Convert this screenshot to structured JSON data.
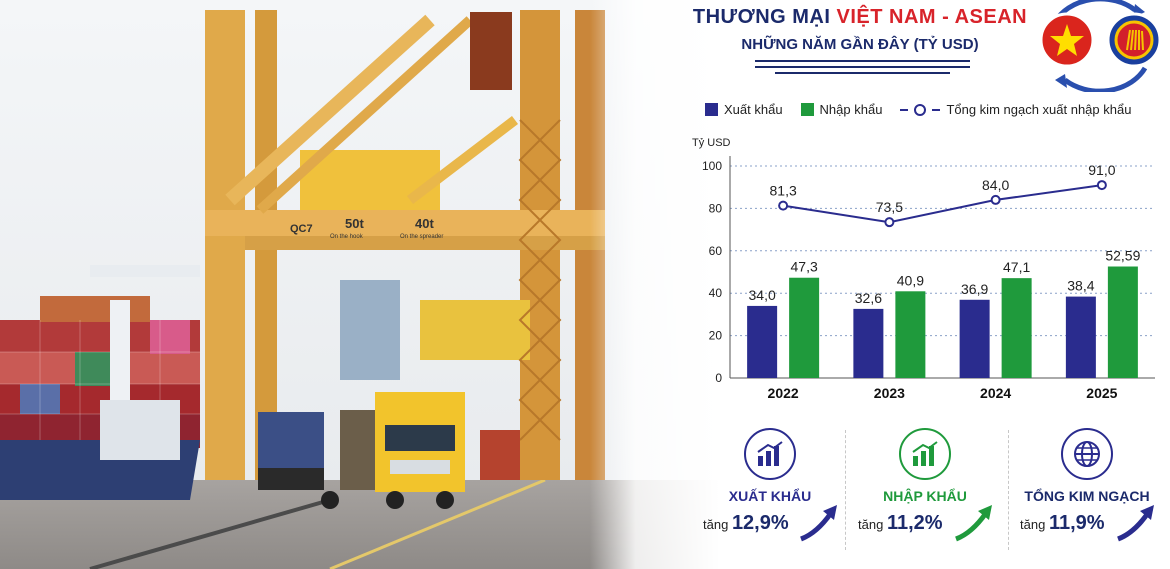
{
  "title": {
    "line1_prefix": "THƯƠNG MẠI ",
    "line1_highlight": "VIỆT NAM - ASEAN",
    "line2": "NHỮNG NĂM GẦN ĐÂY (TỶ USD)"
  },
  "colors": {
    "export": "#2a2c8e",
    "import": "#1f9a3c",
    "total": "#2a2c8e",
    "title": "#1b2a6b",
    "highlight": "#d8232a"
  },
  "chart_data": {
    "type": "bar",
    "categories": [
      "2022",
      "2023",
      "2024",
      "2025"
    ],
    "series": [
      {
        "name": "Xuất khẩu",
        "type": "bar",
        "values": [
          34.0,
          32.6,
          36.9,
          38.4
        ],
        "labels": [
          "34,0",
          "32,6",
          "36,9",
          "38,4"
        ]
      },
      {
        "name": "Nhập khẩu",
        "type": "bar",
        "values": [
          47.3,
          40.9,
          47.1,
          52.59
        ],
        "labels": [
          "47,3",
          "40,9",
          "47,1",
          "52,59"
        ]
      },
      {
        "name": "Tổng kim ngạch xuất nhập khẩu",
        "type": "line",
        "values": [
          81.3,
          73.5,
          84.0,
          91.0
        ],
        "labels": [
          "81,3",
          "73,5",
          "84,0",
          "91,0"
        ]
      }
    ],
    "ylabel": "Tỷ USD",
    "ylim": [
      0,
      100
    ],
    "yticks": [
      0,
      20,
      40,
      60,
      80,
      100
    ],
    "grid": true,
    "legend_position": "top"
  },
  "stats": [
    {
      "name": "XUẤT KHẨU",
      "prefix": "tăng",
      "value": "12,9%",
      "icon": "bar-chart-icon"
    },
    {
      "name": "NHẬP KHẨU",
      "prefix": "tăng",
      "value": "11,2%",
      "icon": "growth-chart-icon"
    },
    {
      "name": "TỔNG KIM NGẠCH",
      "prefix": "tăng",
      "value": "11,9%",
      "icon": "globe-icon"
    }
  ],
  "photo": {
    "crane_id": "QC7",
    "crane_capacity_1": "50t",
    "crane_capacity_1_note": "On the hook",
    "crane_capacity_2": "40t",
    "crane_capacity_2_note": "On the spreader"
  }
}
